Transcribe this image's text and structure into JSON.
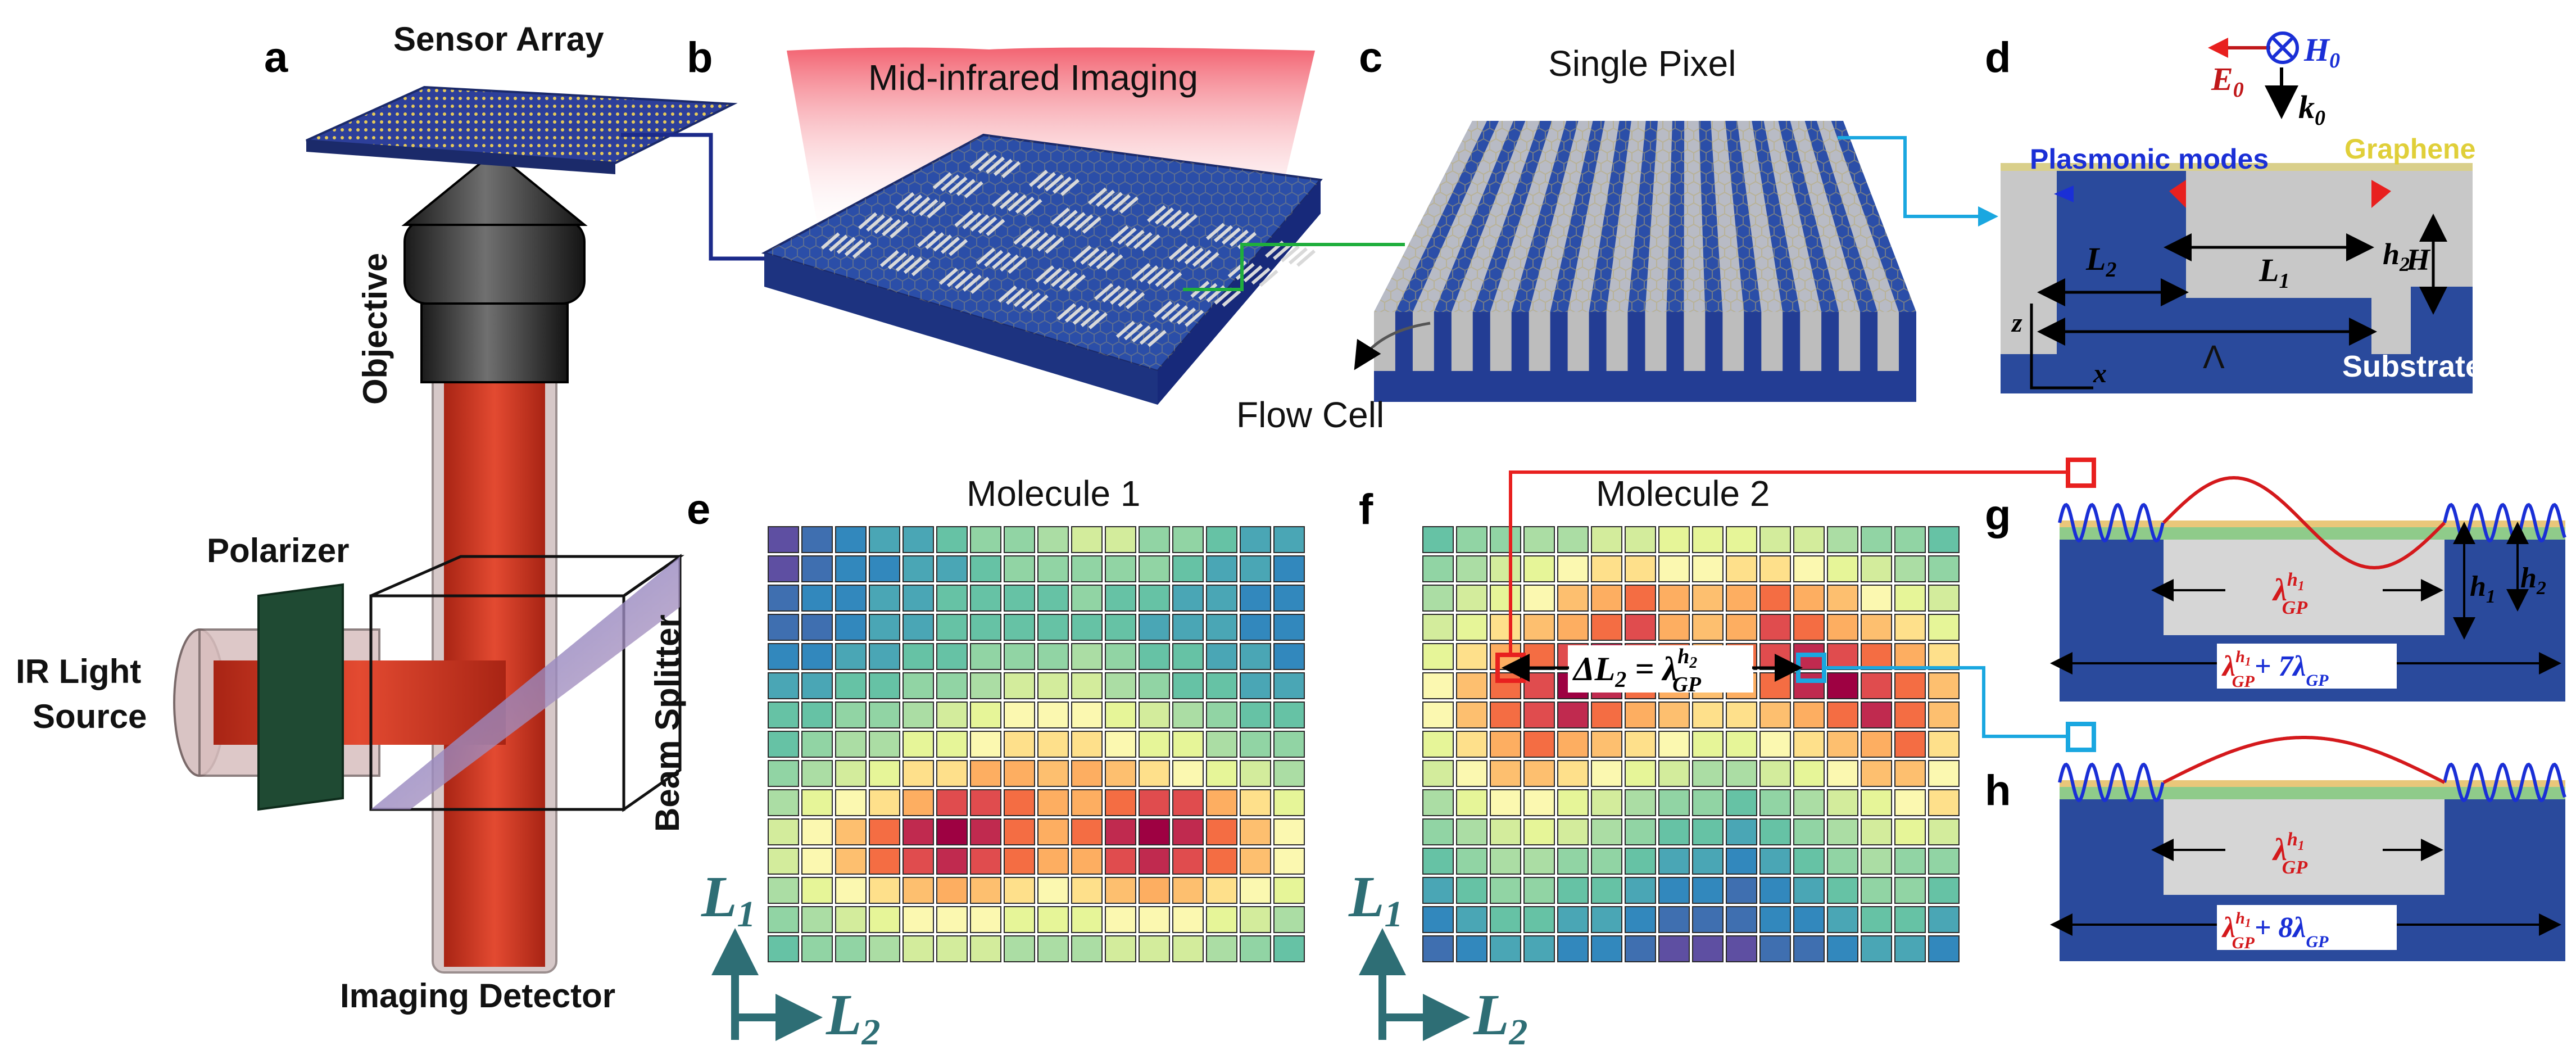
{
  "panel_letters": [
    "a",
    "b",
    "c",
    "d",
    "e",
    "f",
    "g",
    "h"
  ],
  "panel_a": {
    "sensor_array": "Sensor Array",
    "objective": "Objective",
    "polarizer": "Polarizer",
    "source_line1": "IR Light",
    "source_line2": "Source",
    "beam_splitter": "Beam Splitter",
    "detector": "Imaging Detector"
  },
  "panel_b": {
    "title": "Mid-infrared Imaging"
  },
  "panel_c": {
    "title": "Single Pixel",
    "flow_cell": "Flow Cell"
  },
  "panel_d": {
    "E": "E",
    "E_sub": "0",
    "H": "H",
    "H_sub": "0",
    "k": "k",
    "k_sub": "0",
    "plasmonic": "Plasmonic modes",
    "graphene": "Graphene",
    "L1": "L",
    "L1_sub": "1",
    "L2": "L",
    "L2_sub": "2",
    "h2": "h",
    "h2_sub": "2",
    "H_dim": "H",
    "z": "z",
    "x": "x",
    "Lambda": "Λ",
    "substrate": "Substrate"
  },
  "panel_e": {
    "title": "Molecule 1",
    "axis_y": "L",
    "axis_y_sub": "1",
    "axis_x": "L",
    "axis_x_sub": "2"
  },
  "panel_f": {
    "title": "Molecule 2",
    "delta_prefix": "ΔL",
    "delta_sub": "2",
    "delta_eq": " = λ",
    "delta_sup": "h",
    "delta_sup_sub": "2",
    "delta_gp": "GP",
    "axis_y": "L",
    "axis_y_sub": "1",
    "axis_x": "L",
    "axis_x_sub": "2"
  },
  "panel_g": {
    "lambda_main": "λ",
    "lambda_sup": "h",
    "lambda_sup_sub": "1",
    "lambda_sub": "GP",
    "h1": "h",
    "h1_sub": "1",
    "h2": "h",
    "h2_sub": "2",
    "sum_plus": "+ 7",
    "sum_gp": "GP"
  },
  "panel_h": {
    "lambda_main": "λ",
    "lambda_sup": "h",
    "lambda_sup_sub": "1",
    "lambda_sub": "GP",
    "sum_plus": "+ 8",
    "sum_gp": "GP"
  },
  "colors": {
    "beam": "#d93a26",
    "substrate": "#2a4a9c",
    "grating": "#c8c8c8",
    "wave_blue": "#1a2fd6",
    "wave_red": "#d4191c",
    "link_red": "#e8201f",
    "link_blue": "#1aa7e0",
    "link_green": "#1fae3c",
    "link_navy": "#1b2a8a",
    "axis_teal": "#2e6e75"
  },
  "heatmaps": {
    "palette": [
      "#5e4fa2",
      "#3f6fb0",
      "#3288bd",
      "#4aa6b5",
      "#66c2a5",
      "#91d4a4",
      "#abdda4",
      "#d3ec9c",
      "#e6f598",
      "#fbf8b0",
      "#fee08b",
      "#fdbf6f",
      "#fdae61",
      "#f46d43",
      "#e04c4e",
      "#c02a4f",
      "#9e0142"
    ],
    "molecule1": [
      "0123345567755433",
      "0122334555554332",
      "1223344445443322",
      "1123344444433322",
      "2233445556544332",
      "3344556777654433",
      "4455678999876544",
      "4566889AAA988655",
      "5678AACCBCBA9876",
      "689ACEEDCCDEECA8",
      "79BDFGFDCDFGFDB9",
      "79BDEFEDCCEFEDB9",
      "689ABCBA9ABCBA98",
      "5678999888999876",
      "4556777666777654"
    ],
    "molecule2": [
      "4556677888776554",
      "56789AA99AA98765",
      "6789BCDCBCDCB987",
      "78ABCDECBCEDCBA8",
      "8ACDEFEDCDEFEDCA",
      "9BDEGFDCBCDFGEDB",
      "9BDEFDCBAABCDFDB",
      "8ACDCBA9889ABCDA",
      "79BBA98766789BB9",
      "689987655456789A",
      "5678765443456787",
      "4566554332345655",
      "3455443221234554",
      "2344332111223443",
      "1233221000112332"
    ]
  }
}
